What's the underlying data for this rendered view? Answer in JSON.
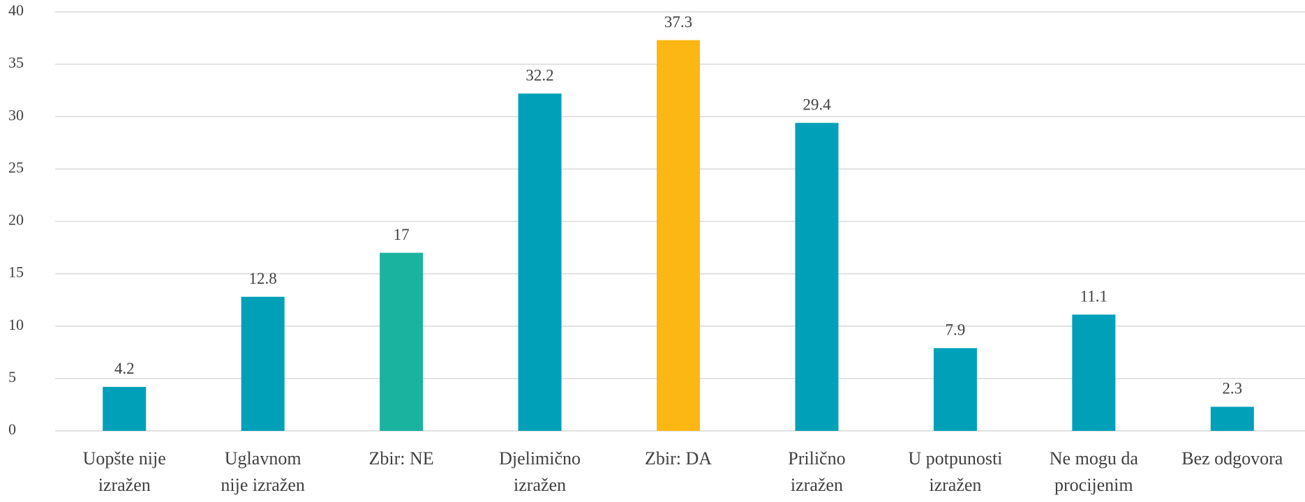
{
  "chart_data": {
    "type": "bar",
    "categories": [
      "Uopšte nije\nizražen",
      "Uglavnom\nnije izražen",
      "Zbir: NE",
      "Djelimično\nizražen",
      "Zbir: DA",
      "Prilično\nizražen",
      "U potpunosti\nizražen",
      "Ne mogu da\nprocijenim",
      "Bez odgovora"
    ],
    "values": [
      4.2,
      12.8,
      17,
      32.2,
      37.3,
      29.4,
      7.9,
      11.1,
      2.3
    ],
    "colors": [
      "#00a0b8",
      "#00a0b8",
      "#1ab3a0",
      "#00a0b8",
      "#fdb714",
      "#00a0b8",
      "#00a0b8",
      "#00a0b8",
      "#00a0b8"
    ],
    "ylim": [
      0,
      40
    ],
    "yticks": [
      0,
      5,
      10,
      15,
      20,
      25,
      30,
      35,
      40
    ],
    "grid": true
  }
}
